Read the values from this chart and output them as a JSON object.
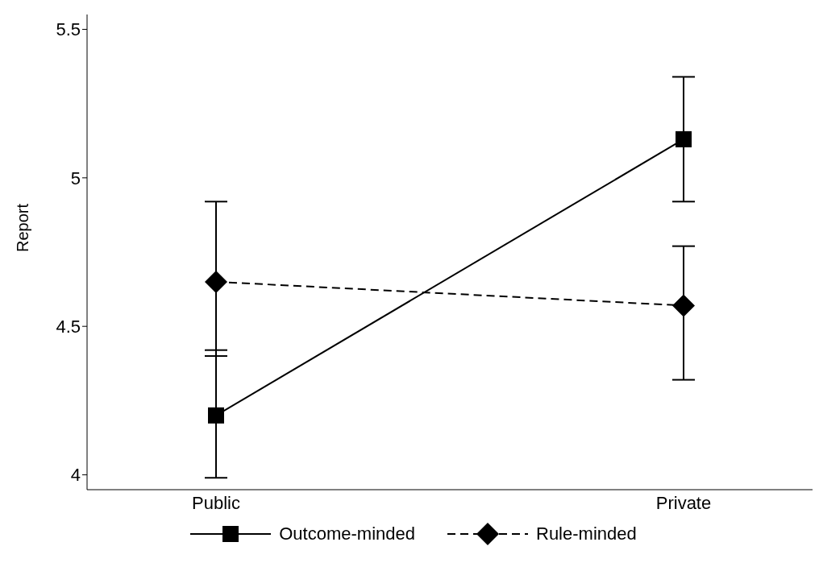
{
  "chart_data": {
    "type": "line",
    "ylabel": "Report",
    "categories": [
      "Public",
      "Private"
    ],
    "series": [
      {
        "name": "Outcome-minded",
        "color": "#000000",
        "values": [
          4.2,
          5.13
        ],
        "errors": [
          [
            3.99,
            4.42
          ],
          [
            4.92,
            5.34
          ]
        ],
        "marker": "square",
        "line_style": "solid"
      },
      {
        "name": "Rule-minded",
        "color": "#000000",
        "values": [
          4.65,
          4.57
        ],
        "errors": [
          [
            4.4,
            4.92
          ],
          [
            4.32,
            4.77
          ]
        ],
        "marker": "diamond",
        "line_style": "dashed"
      }
    ],
    "ylim": [
      3.95,
      5.55
    ],
    "yticks": [
      4,
      4.5,
      5,
      5.5
    ],
    "legend": "bottom"
  }
}
